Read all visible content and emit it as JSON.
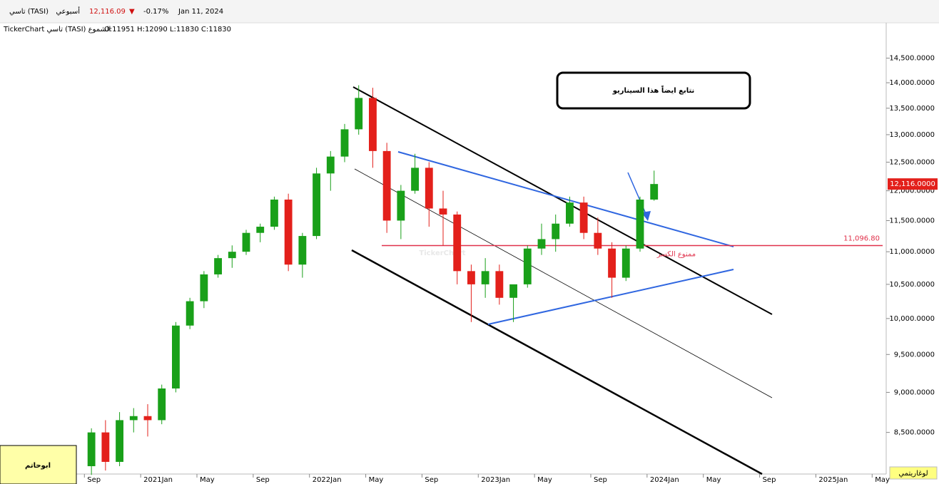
{
  "header": {
    "symbol": "تاسي (TASI)",
    "period": "أسبوعي",
    "price": "12,116.09",
    "arrow": "▼",
    "change": "-0.17%",
    "date": "Jan 11, 2024",
    "source": "TickerChart تاسي (TASI) الشموع",
    "ohlc": "O:11951  H:12090  L:11830  C:11830"
  },
  "chart_data": {
    "type": "candlestick",
    "log_scale": true,
    "up_color": "#19a019",
    "down_color": "#e3201b",
    "x": [
      "2020-09",
      "2020-10",
      "2020-11",
      "2020-12",
      "2021-01",
      "2021-02",
      "2021-03",
      "2021-04",
      "2021-05",
      "2021-06",
      "2021-07",
      "2021-08",
      "2021-09",
      "2021-10",
      "2021-11",
      "2021-12",
      "2022-01",
      "2022-02",
      "2022-03",
      "2022-04",
      "2022-05",
      "2022-06",
      "2022-07",
      "2022-08",
      "2022-09",
      "2022-10",
      "2022-11",
      "2022-12",
      "2023-01",
      "2023-02",
      "2023-03",
      "2023-04",
      "2023-05",
      "2023-06",
      "2023-07",
      "2023-08",
      "2023-09",
      "2023-10",
      "2023-11",
      "2023-12",
      "2024-01"
    ],
    "open": [
      8100,
      8500,
      8150,
      8650,
      8700,
      8650,
      9050,
      9900,
      10250,
      10650,
      10900,
      11000,
      11300,
      11400,
      11850,
      10800,
      11250,
      12300,
      12600,
      13100,
      13700,
      12700,
      11500,
      12000,
      12400,
      11700,
      11600,
      10700,
      10500,
      10700,
      10300,
      10500,
      11050,
      11200,
      11450,
      11800,
      11300,
      11050,
      10600,
      11050,
      11850
    ],
    "high": [
      8550,
      8650,
      8750,
      8800,
      8850,
      9100,
      9950,
      10300,
      10700,
      10950,
      11100,
      11350,
      11450,
      11900,
      11950,
      11300,
      12400,
      12700,
      13200,
      13950,
      13900,
      12850,
      12100,
      12650,
      12500,
      12000,
      11650,
      10800,
      10900,
      10800,
      10450,
      11100,
      11450,
      11600,
      11900,
      11900,
      11550,
      11150,
      11100,
      11900,
      12350
    ],
    "low": [
      8000,
      8050,
      8100,
      8500,
      8450,
      8600,
      9000,
      9850,
      10150,
      10600,
      10750,
      10950,
      11150,
      11350,
      10700,
      10600,
      11200,
      12000,
      12500,
      13000,
      12400,
      11300,
      11200,
      11950,
      11400,
      11100,
      10500,
      9950,
      10300,
      10200,
      9950,
      10450,
      10950,
      11000,
      11400,
      11200,
      10950,
      10300,
      10550,
      11000,
      11830
    ],
    "close": [
      8500,
      8150,
      8650,
      8700,
      8650,
      9050,
      9900,
      10250,
      10650,
      10900,
      11000,
      11300,
      11400,
      11850,
      10800,
      11250,
      12300,
      12600,
      13100,
      13700,
      12700,
      11500,
      12000,
      12400,
      11700,
      11600,
      10700,
      10500,
      10700,
      10300,
      10500,
      11050,
      11200,
      11450,
      11800,
      11300,
      11050,
      10600,
      11050,
      11850,
      12116
    ],
    "xlim": [
      "2020-03",
      "2025-06"
    ],
    "xticks": [
      {
        "value": "2020-09",
        "label": "Sep"
      },
      {
        "value": "2021-01",
        "label": "2021Jan"
      },
      {
        "value": "2021-05",
        "label": "May"
      },
      {
        "value": "2021-09",
        "label": "Sep"
      },
      {
        "value": "2022-01",
        "label": "2022Jan"
      },
      {
        "value": "2022-05",
        "label": "May"
      },
      {
        "value": "2022-09",
        "label": "Sep"
      },
      {
        "value": "2023-01",
        "label": "2023Jan"
      },
      {
        "value": "2023-05",
        "label": "May"
      },
      {
        "value": "2023-09",
        "label": "Sep"
      },
      {
        "value": "2024-01",
        "label": "2024Jan"
      },
      {
        "value": "2024-05",
        "label": "May"
      },
      {
        "value": "2024-09",
        "label": "Sep"
      },
      {
        "value": "2025-01",
        "label": "2025Jan"
      },
      {
        "value": "2025-05",
        "label": "May"
      }
    ],
    "ylim": [
      8010,
      15250
    ],
    "yticks": [
      {
        "value": 8500,
        "label": "8,500.0000"
      },
      {
        "value": 9000,
        "label": "9,000.0000"
      },
      {
        "value": 9500,
        "label": "9,500.0000"
      },
      {
        "value": 10000,
        "label": "10,000.0000"
      },
      {
        "value": 10500,
        "label": "10,500.0000"
      },
      {
        "value": 11000,
        "label": "11,000.0000"
      },
      {
        "value": 11500,
        "label": "11,500.0000"
      },
      {
        "value": 12000,
        "label": "12,000.0000"
      },
      {
        "value": 12500,
        "label": "12,500.0000"
      },
      {
        "value": 13000,
        "label": "13,000.0000"
      },
      {
        "value": 13500,
        "label": "13,500.0000"
      },
      {
        "value": 14000,
        "label": "14,000.0000"
      },
      {
        "value": 14500,
        "label": "14,500.0000"
      }
    ],
    "last_price": {
      "value": 12116,
      "label": "12,116.0000"
    },
    "level": {
      "value": 11096.8,
      "label": "11,096.80",
      "note": "ممنوع الكسر"
    },
    "title": "نتابع ايضاً هذا السيناريو",
    "watermark": "TickerChart",
    "scale_button": "لوغاريتمي"
  },
  "author": "ابوحاتم"
}
